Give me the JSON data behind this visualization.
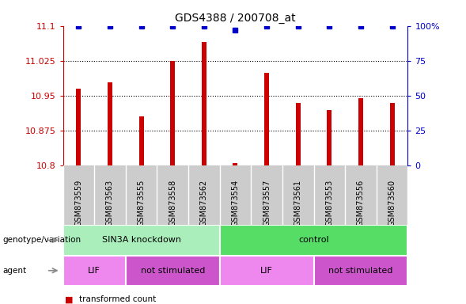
{
  "title": "GDS4388 / 200708_at",
  "samples": [
    "GSM873559",
    "GSM873563",
    "GSM873555",
    "GSM873558",
    "GSM873562",
    "GSM873554",
    "GSM873557",
    "GSM873561",
    "GSM873553",
    "GSM873556",
    "GSM873560"
  ],
  "bar_values": [
    10.965,
    10.978,
    10.905,
    11.025,
    11.065,
    10.805,
    11.0,
    10.935,
    10.92,
    10.945,
    10.935
  ],
  "percentile_values": [
    100,
    100,
    100,
    100,
    100,
    97,
    100,
    100,
    100,
    100,
    100
  ],
  "ylim_left": [
    10.8,
    11.1
  ],
  "ylim_right": [
    0,
    100
  ],
  "yticks_left": [
    10.8,
    10.875,
    10.95,
    11.025,
    11.1
  ],
  "yticks_right": [
    0,
    25,
    50,
    75,
    100
  ],
  "bar_color": "#cc0000",
  "dot_color": "#0000cc",
  "genotype_groups": [
    {
      "label": "SIN3A knockdown",
      "start": 0,
      "end": 5,
      "color": "#aaeebb"
    },
    {
      "label": "control",
      "start": 5,
      "end": 11,
      "color": "#55dd66"
    }
  ],
  "agent_groups": [
    {
      "label": "LIF",
      "start": 0,
      "end": 2,
      "color": "#ee88ee"
    },
    {
      "label": "not stimulated",
      "start": 2,
      "end": 5,
      "color": "#cc55cc"
    },
    {
      "label": "LIF",
      "start": 5,
      "end": 8,
      "color": "#ee88ee"
    },
    {
      "label": "not stimulated",
      "start": 8,
      "end": 11,
      "color": "#cc55cc"
    }
  ],
  "left_axis_color": "#cc0000",
  "right_axis_color": "#0000cc",
  "sample_bg_color": "#cccccc",
  "sample_sep_color": "#ffffff"
}
